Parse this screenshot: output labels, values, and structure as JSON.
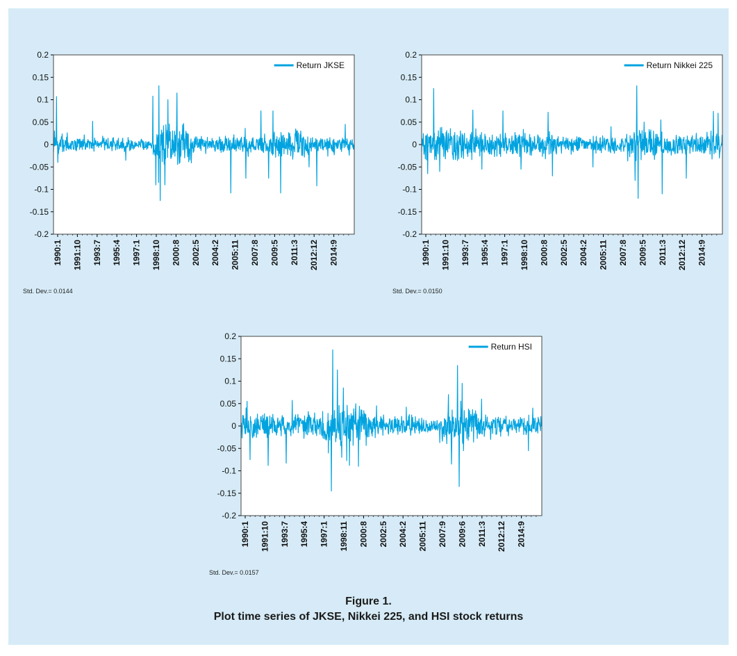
{
  "colors": {
    "series": "#00a3e0",
    "panel_background": "#d6ebf7",
    "plot_background": "#ffffff"
  },
  "chart_data": [
    {
      "type": "line",
      "ylim": [
        -0.2,
        0.2
      ],
      "y_ticks": [
        "0.2",
        "0.15",
        "0.1",
        "0.05",
        "0",
        "-0.05",
        "-0.1",
        "-0.15",
        "-0.2"
      ],
      "x_tick_labels": [
        "1990:1",
        "1991:10",
        "1993:7",
        "1995:4",
        "1997:1",
        "1998:10",
        "2000:8",
        "2002:5",
        "2004:2",
        "2005:11",
        "2007:8",
        "2009:5",
        "2011:3",
        "2012:12",
        "2014:9"
      ],
      "x_range": [
        "1990:1",
        "2016:1"
      ],
      "legend": "Return JKSE",
      "legend_position": "top-right",
      "grid": false,
      "std_dev_label": "Std. Dev.= 0.0144",
      "regimes": [
        {
          "from": 0.0,
          "to": 0.04,
          "amp": 0.022
        },
        {
          "from": 0.04,
          "to": 0.26,
          "amp": 0.012
        },
        {
          "from": 0.26,
          "to": 0.33,
          "amp": 0.01
        },
        {
          "from": 0.33,
          "to": 0.46,
          "amp": 0.042
        },
        {
          "from": 0.46,
          "to": 0.72,
          "amp": 0.016
        },
        {
          "from": 0.72,
          "to": 0.85,
          "amp": 0.024
        },
        {
          "from": 0.85,
          "to": 1.0,
          "amp": 0.013
        }
      ],
      "spikes": [
        {
          "x": 0.01,
          "y": 0.107
        },
        {
          "x": 0.015,
          "y": -0.04
        },
        {
          "x": 0.13,
          "y": 0.052
        },
        {
          "x": 0.24,
          "y": -0.035
        },
        {
          "x": 0.33,
          "y": 0.108
        },
        {
          "x": 0.34,
          "y": -0.09
        },
        {
          "x": 0.35,
          "y": 0.131
        },
        {
          "x": 0.355,
          "y": -0.125
        },
        {
          "x": 0.37,
          "y": -0.09
        },
        {
          "x": 0.38,
          "y": 0.1
        },
        {
          "x": 0.41,
          "y": 0.115
        },
        {
          "x": 0.42,
          "y": -0.04
        },
        {
          "x": 0.59,
          "y": -0.108
        },
        {
          "x": 0.64,
          "y": -0.075
        },
        {
          "x": 0.69,
          "y": 0.075
        },
        {
          "x": 0.73,
          "y": 0.075
        },
        {
          "x": 0.715,
          "y": -0.075
        },
        {
          "x": 0.755,
          "y": -0.108
        },
        {
          "x": 0.805,
          "y": 0.035
        },
        {
          "x": 0.85,
          "y": -0.05
        },
        {
          "x": 0.875,
          "y": -0.092
        },
        {
          "x": 0.97,
          "y": 0.045
        }
      ]
    },
    {
      "type": "line",
      "ylim": [
        -0.2,
        0.2
      ],
      "y_ticks": [
        "0.2",
        "0.15",
        "0.1",
        "0.05",
        "0",
        "-0.05",
        "-0.1",
        "-0.15",
        "-0.2"
      ],
      "x_tick_labels": [
        "1990:1",
        "1991:10",
        "1993:7",
        "1995:4",
        "1997:1",
        "1998:10",
        "2000:8",
        "2002:5",
        "2004:2",
        "2005:11",
        "2007:8",
        "2009:5",
        "2011:3",
        "2012:12",
        "2014:9"
      ],
      "x_range": [
        "1990:1",
        "2016:1"
      ],
      "legend": "Return Nikkei 225",
      "legend_position": "top-right",
      "grid": false,
      "std_dev_label": "Std. Dev.= 0.0150",
      "regimes": [
        {
          "from": 0.0,
          "to": 0.2,
          "amp": 0.028
        },
        {
          "from": 0.2,
          "to": 0.45,
          "amp": 0.022
        },
        {
          "from": 0.45,
          "to": 0.68,
          "amp": 0.016
        },
        {
          "from": 0.68,
          "to": 0.78,
          "amp": 0.03
        },
        {
          "from": 0.78,
          "to": 1.0,
          "amp": 0.02
        }
      ],
      "spikes": [
        {
          "x": 0.02,
          "y": -0.065
        },
        {
          "x": 0.04,
          "y": 0.125
        },
        {
          "x": 0.06,
          "y": -0.06
        },
        {
          "x": 0.17,
          "y": 0.077
        },
        {
          "x": 0.2,
          "y": -0.055
        },
        {
          "x": 0.27,
          "y": 0.075
        },
        {
          "x": 0.33,
          "y": -0.055
        },
        {
          "x": 0.42,
          "y": 0.072
        },
        {
          "x": 0.435,
          "y": -0.07
        },
        {
          "x": 0.57,
          "y": -0.05
        },
        {
          "x": 0.63,
          "y": 0.04
        },
        {
          "x": 0.715,
          "y": 0.131
        },
        {
          "x": 0.72,
          "y": -0.12
        },
        {
          "x": 0.71,
          "y": -0.08
        },
        {
          "x": 0.74,
          "y": 0.05
        },
        {
          "x": 0.8,
          "y": -0.11
        },
        {
          "x": 0.795,
          "y": 0.055
        },
        {
          "x": 0.88,
          "y": -0.075
        },
        {
          "x": 0.97,
          "y": 0.074
        },
        {
          "x": 0.985,
          "y": 0.07
        },
        {
          "x": 0.99,
          "y": -0.03
        }
      ]
    },
    {
      "type": "line",
      "ylim": [
        -0.2,
        0.2
      ],
      "y_ticks": [
        "0.2",
        "0.15",
        "0.1",
        "0.05",
        "0",
        "-0.05",
        "-0.1",
        "-0.15",
        "-0.2"
      ],
      "x_tick_labels": [
        "1990:1",
        "1991:10",
        "1993:7",
        "1995:4",
        "1997:1",
        "1998:11",
        "2000:8",
        "2002:5",
        "2004:2",
        "2005:11",
        "2007:9",
        "2009:6",
        "2011:3",
        "2012:12",
        "2014:9"
      ],
      "x_range": [
        "1990:1",
        "2016:1"
      ],
      "legend": "Return HSI",
      "legend_position": "top-right",
      "grid": false,
      "std_dev_label": "Std. Dev.= 0.0157",
      "regimes": [
        {
          "from": 0.0,
          "to": 0.27,
          "amp": 0.022
        },
        {
          "from": 0.27,
          "to": 0.42,
          "amp": 0.038
        },
        {
          "from": 0.42,
          "to": 0.6,
          "amp": 0.02
        },
        {
          "from": 0.6,
          "to": 0.66,
          "amp": 0.012
        },
        {
          "from": 0.66,
          "to": 0.79,
          "amp": 0.034
        },
        {
          "from": 0.79,
          "to": 1.0,
          "amp": 0.018
        }
      ],
      "spikes": [
        {
          "x": 0.02,
          "y": 0.055
        },
        {
          "x": 0.03,
          "y": -0.075
        },
        {
          "x": 0.09,
          "y": -0.088
        },
        {
          "x": 0.15,
          "y": -0.083
        },
        {
          "x": 0.17,
          "y": 0.057
        },
        {
          "x": 0.29,
          "y": -0.06
        },
        {
          "x": 0.305,
          "y": 0.17
        },
        {
          "x": 0.3,
          "y": -0.145
        },
        {
          "x": 0.32,
          "y": 0.125
        },
        {
          "x": 0.34,
          "y": 0.085
        },
        {
          "x": 0.335,
          "y": -0.07
        },
        {
          "x": 0.36,
          "y": -0.088
        },
        {
          "x": 0.39,
          "y": -0.09
        },
        {
          "x": 0.45,
          "y": 0.045
        },
        {
          "x": 0.55,
          "y": 0.042
        },
        {
          "x": 0.69,
          "y": 0.07
        },
        {
          "x": 0.7,
          "y": -0.085
        },
        {
          "x": 0.72,
          "y": 0.135
        },
        {
          "x": 0.725,
          "y": -0.135
        },
        {
          "x": 0.735,
          "y": 0.095
        },
        {
          "x": 0.74,
          "y": -0.055
        },
        {
          "x": 0.8,
          "y": 0.06
        },
        {
          "x": 0.83,
          "y": -0.03
        },
        {
          "x": 0.955,
          "y": -0.055
        },
        {
          "x": 0.97,
          "y": 0.04
        }
      ]
    }
  ],
  "caption": {
    "line1": "Figure 1.",
    "line2": "Plot time series of JKSE, Nikkei 225, and HSI stock returns"
  }
}
